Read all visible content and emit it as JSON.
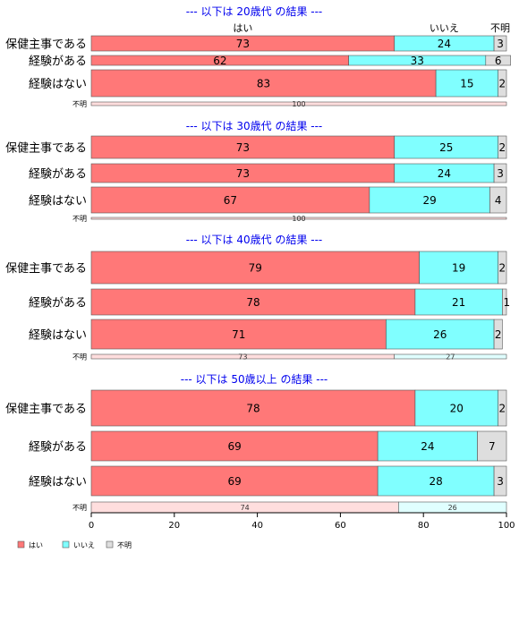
{
  "colors": {
    "yes": "#ff7878",
    "no": "#80ffff",
    "unknown": "#dedede",
    "title": "#0000ee"
  },
  "chart_data": {
    "type": "bar",
    "orientation": "horizontal",
    "stacked": "percent",
    "column_headers": [
      "はい",
      "いいえ",
      "不明"
    ],
    "series_names": [
      "はい",
      "いいえ",
      "不明"
    ],
    "xlim": [
      0,
      100
    ],
    "xticks": [
      0,
      20,
      40,
      60,
      80,
      100
    ],
    "groups": [
      {
        "title": "--- 以下は 20歳代 の結果 ---",
        "rows": [
          {
            "label": "保健主事である",
            "values": [
              73,
              24,
              3
            ]
          },
          {
            "label": "経験がある",
            "values": [
              62,
              33,
              6
            ]
          },
          {
            "label": "経験はない",
            "values": [
              83,
              15,
              2
            ]
          },
          {
            "label": "不明",
            "values": [
              100
            ]
          }
        ]
      },
      {
        "title": "--- 以下は 30歳代 の結果 ---",
        "rows": [
          {
            "label": "保健主事である",
            "values": [
              73,
              25,
              2
            ]
          },
          {
            "label": "経験がある",
            "values": [
              73,
              24,
              3
            ]
          },
          {
            "label": "経験はない",
            "values": [
              67,
              29,
              4
            ]
          },
          {
            "label": "不明",
            "values": [
              100
            ]
          }
        ]
      },
      {
        "title": "--- 以下は 40歳代 の結果 ---",
        "rows": [
          {
            "label": "保健主事である",
            "values": [
              79,
              19,
              2
            ]
          },
          {
            "label": "経験がある",
            "values": [
              78,
              21,
              1
            ]
          },
          {
            "label": "経験はない",
            "values": [
              71,
              26,
              2
            ]
          },
          {
            "label": "不明",
            "values": [
              73,
              27
            ]
          }
        ]
      },
      {
        "title": "--- 以下は 50歳以上 の結果 ---",
        "rows": [
          {
            "label": "保健主事である",
            "values": [
              78,
              20,
              2
            ]
          },
          {
            "label": "経験がある",
            "values": [
              69,
              24,
              7
            ]
          },
          {
            "label": "経験はない",
            "values": [
              69,
              28,
              3
            ]
          },
          {
            "label": "不明",
            "values": [
              74,
              26
            ]
          }
        ]
      }
    ],
    "legend": {
      "position": "bottom-left",
      "entries": [
        "はい",
        "いいえ",
        "不明"
      ]
    }
  }
}
